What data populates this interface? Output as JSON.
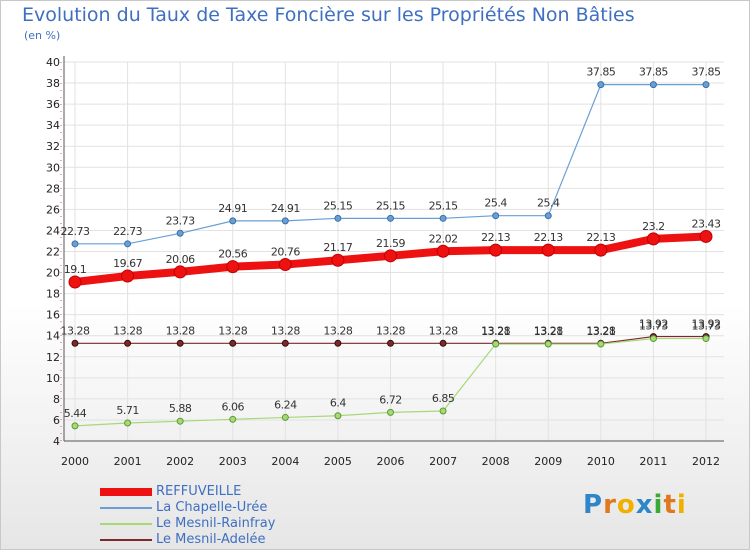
{
  "chart_data": {
    "type": "line",
    "title": "Evolution du Taux de Taxe Foncière sur les Propriétés Non Bâties",
    "ylabel": "(en %)",
    "xlabel": "",
    "x": [
      "2000",
      "2001",
      "2002",
      "2003",
      "2004",
      "2005",
      "2006",
      "2007",
      "2008",
      "2009",
      "2010",
      "2011",
      "2012"
    ],
    "ylim": [
      4,
      40
    ],
    "yticks": [
      4,
      6,
      8,
      10,
      12,
      14,
      16,
      18,
      20,
      22,
      24,
      26,
      28,
      30,
      32,
      34,
      36,
      38,
      40
    ],
    "grid": true,
    "series": [
      {
        "name": "REFFUVEILLE",
        "color": "#ee1111",
        "values": [
          19.1,
          19.67,
          20.06,
          20.56,
          20.76,
          21.17,
          21.59,
          22.02,
          22.13,
          22.13,
          22.13,
          23.2,
          23.43
        ],
        "labels": [
          "19.1",
          "19.67",
          "20.06",
          "20.56",
          "20.76",
          "21.17",
          "21.59",
          "22.02",
          "22.13",
          "22.13",
          "22.13",
          "23.2",
          "23.43"
        ]
      },
      {
        "name": "La Chapelle-Urée",
        "color": "#6a9fd4",
        "values": [
          22.73,
          22.73,
          23.73,
          24.91,
          24.91,
          25.15,
          25.15,
          25.15,
          25.4,
          25.4,
          37.85,
          37.85,
          37.85
        ],
        "labels": [
          "22.73",
          "22.73",
          "23.73",
          "24.91",
          "24.91",
          "25.15",
          "25.15",
          "25.15",
          "25.4",
          "25.4",
          "37.85",
          "37.85",
          "37.85"
        ]
      },
      {
        "name": "Le Mesnil-Rainfray",
        "color": "#a8d878",
        "values": [
          5.44,
          5.71,
          5.88,
          6.06,
          6.24,
          6.4,
          6.72,
          6.85,
          13.21,
          13.21,
          13.21,
          13.73,
          13.73
        ],
        "labels": [
          "5.44",
          "5.71",
          "5.88",
          "6.06",
          "6.24",
          "6.4",
          "6.72",
          "6.85",
          "13.21",
          "13.21",
          "13.21",
          "13.73",
          "13.73"
        ]
      },
      {
        "name": "Le Mesnil-Adelée",
        "color": "#7a2a2a",
        "values": [
          13.28,
          13.28,
          13.28,
          13.28,
          13.28,
          13.28,
          13.28,
          13.28,
          13.28,
          13.28,
          13.28,
          13.92,
          13.92
        ],
        "labels": [
          "13.28",
          "13.28",
          "13.28",
          "13.28",
          "13.28",
          "13.28",
          "13.28",
          "13.28",
          "13.28",
          "13.28",
          "13.28",
          "13.92",
          "13.92"
        ]
      }
    ],
    "legend_position": "bottom-left"
  },
  "logo": {
    "text": "Proxiti",
    "letters": [
      "P",
      "r",
      "o",
      "x",
      "i",
      "t",
      "i"
    ],
    "colors": [
      "#2e86c8",
      "#e07820",
      "#f0b000",
      "#2e86c8",
      "#3aaa35",
      "#e07820",
      "#f0b000"
    ]
  }
}
